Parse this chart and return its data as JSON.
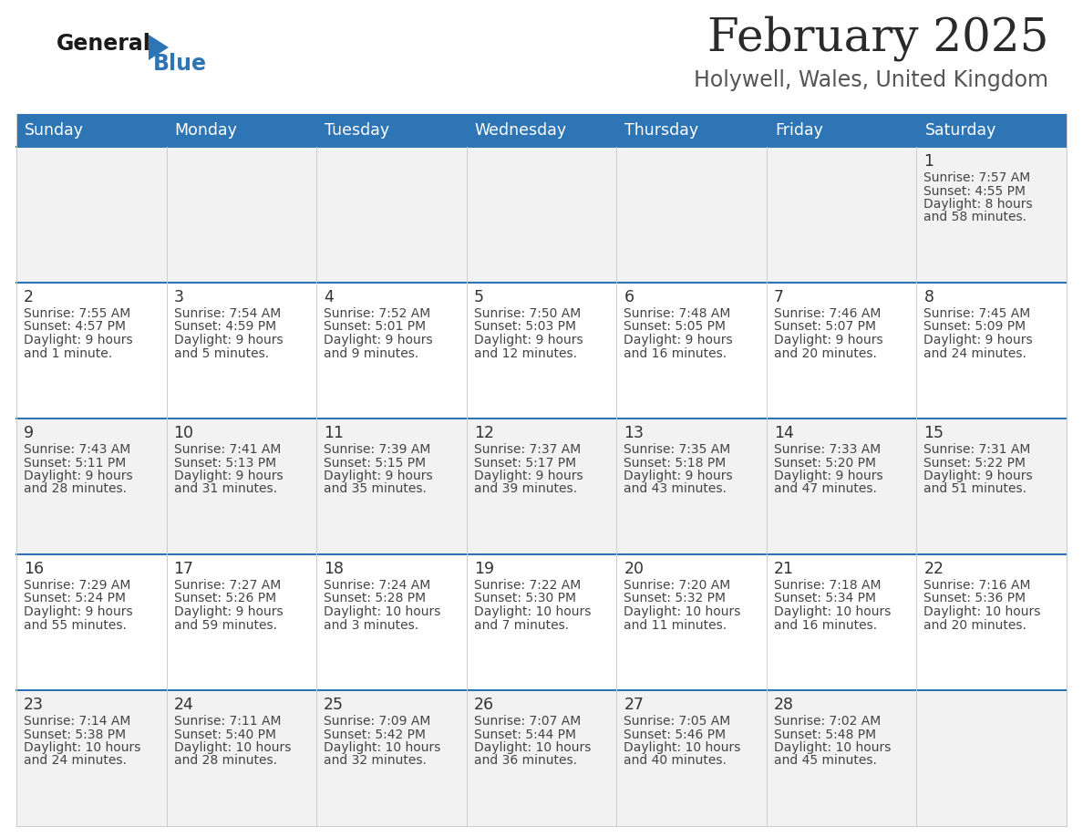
{
  "title": "February 2025",
  "subtitle": "Holywell, Wales, United Kingdom",
  "header_bg": "#2E75B6",
  "header_text_color": "#FFFFFF",
  "day_names": [
    "Sunday",
    "Monday",
    "Tuesday",
    "Wednesday",
    "Thursday",
    "Friday",
    "Saturday"
  ],
  "row_bg_even": "#F2F2F2",
  "row_bg_odd": "#FFFFFF",
  "date_color": "#333333",
  "info_color": "#444444",
  "divider_color": "#2E75B6",
  "logo_general_color": "#1a1a1a",
  "logo_blue_color": "#2E75B6",
  "title_color": "#2a2a2a",
  "subtitle_color": "#555555",
  "border_color": "#cccccc",
  "calendar": [
    [
      null,
      null,
      null,
      null,
      null,
      null,
      {
        "day": 1,
        "sunrise": "7:57 AM",
        "sunset": "4:55 PM",
        "daylight": "8 hours and 58 minutes"
      }
    ],
    [
      {
        "day": 2,
        "sunrise": "7:55 AM",
        "sunset": "4:57 PM",
        "daylight": "9 hours and 1 minute"
      },
      {
        "day": 3,
        "sunrise": "7:54 AM",
        "sunset": "4:59 PM",
        "daylight": "9 hours and 5 minutes"
      },
      {
        "day": 4,
        "sunrise": "7:52 AM",
        "sunset": "5:01 PM",
        "daylight": "9 hours and 9 minutes"
      },
      {
        "day": 5,
        "sunrise": "7:50 AM",
        "sunset": "5:03 PM",
        "daylight": "9 hours and 12 minutes"
      },
      {
        "day": 6,
        "sunrise": "7:48 AM",
        "sunset": "5:05 PM",
        "daylight": "9 hours and 16 minutes"
      },
      {
        "day": 7,
        "sunrise": "7:46 AM",
        "sunset": "5:07 PM",
        "daylight": "9 hours and 20 minutes"
      },
      {
        "day": 8,
        "sunrise": "7:45 AM",
        "sunset": "5:09 PM",
        "daylight": "9 hours and 24 minutes"
      }
    ],
    [
      {
        "day": 9,
        "sunrise": "7:43 AM",
        "sunset": "5:11 PM",
        "daylight": "9 hours and 28 minutes"
      },
      {
        "day": 10,
        "sunrise": "7:41 AM",
        "sunset": "5:13 PM",
        "daylight": "9 hours and 31 minutes"
      },
      {
        "day": 11,
        "sunrise": "7:39 AM",
        "sunset": "5:15 PM",
        "daylight": "9 hours and 35 minutes"
      },
      {
        "day": 12,
        "sunrise": "7:37 AM",
        "sunset": "5:17 PM",
        "daylight": "9 hours and 39 minutes"
      },
      {
        "day": 13,
        "sunrise": "7:35 AM",
        "sunset": "5:18 PM",
        "daylight": "9 hours and 43 minutes"
      },
      {
        "day": 14,
        "sunrise": "7:33 AM",
        "sunset": "5:20 PM",
        "daylight": "9 hours and 47 minutes"
      },
      {
        "day": 15,
        "sunrise": "7:31 AM",
        "sunset": "5:22 PM",
        "daylight": "9 hours and 51 minutes"
      }
    ],
    [
      {
        "day": 16,
        "sunrise": "7:29 AM",
        "sunset": "5:24 PM",
        "daylight": "9 hours and 55 minutes"
      },
      {
        "day": 17,
        "sunrise": "7:27 AM",
        "sunset": "5:26 PM",
        "daylight": "9 hours and 59 minutes"
      },
      {
        "day": 18,
        "sunrise": "7:24 AM",
        "sunset": "5:28 PM",
        "daylight": "10 hours and 3 minutes"
      },
      {
        "day": 19,
        "sunrise": "7:22 AM",
        "sunset": "5:30 PM",
        "daylight": "10 hours and 7 minutes"
      },
      {
        "day": 20,
        "sunrise": "7:20 AM",
        "sunset": "5:32 PM",
        "daylight": "10 hours and 11 minutes"
      },
      {
        "day": 21,
        "sunrise": "7:18 AM",
        "sunset": "5:34 PM",
        "daylight": "10 hours and 16 minutes"
      },
      {
        "day": 22,
        "sunrise": "7:16 AM",
        "sunset": "5:36 PM",
        "daylight": "10 hours and 20 minutes"
      }
    ],
    [
      {
        "day": 23,
        "sunrise": "7:14 AM",
        "sunset": "5:38 PM",
        "daylight": "10 hours and 24 minutes"
      },
      {
        "day": 24,
        "sunrise": "7:11 AM",
        "sunset": "5:40 PM",
        "daylight": "10 hours and 28 minutes"
      },
      {
        "day": 25,
        "sunrise": "7:09 AM",
        "sunset": "5:42 PM",
        "daylight": "10 hours and 32 minutes"
      },
      {
        "day": 26,
        "sunrise": "7:07 AM",
        "sunset": "5:44 PM",
        "daylight": "10 hours and 36 minutes"
      },
      {
        "day": 27,
        "sunrise": "7:05 AM",
        "sunset": "5:46 PM",
        "daylight": "10 hours and 40 minutes"
      },
      {
        "day": 28,
        "sunrise": "7:02 AM",
        "sunset": "5:48 PM",
        "daylight": "10 hours and 45 minutes"
      },
      null
    ]
  ]
}
